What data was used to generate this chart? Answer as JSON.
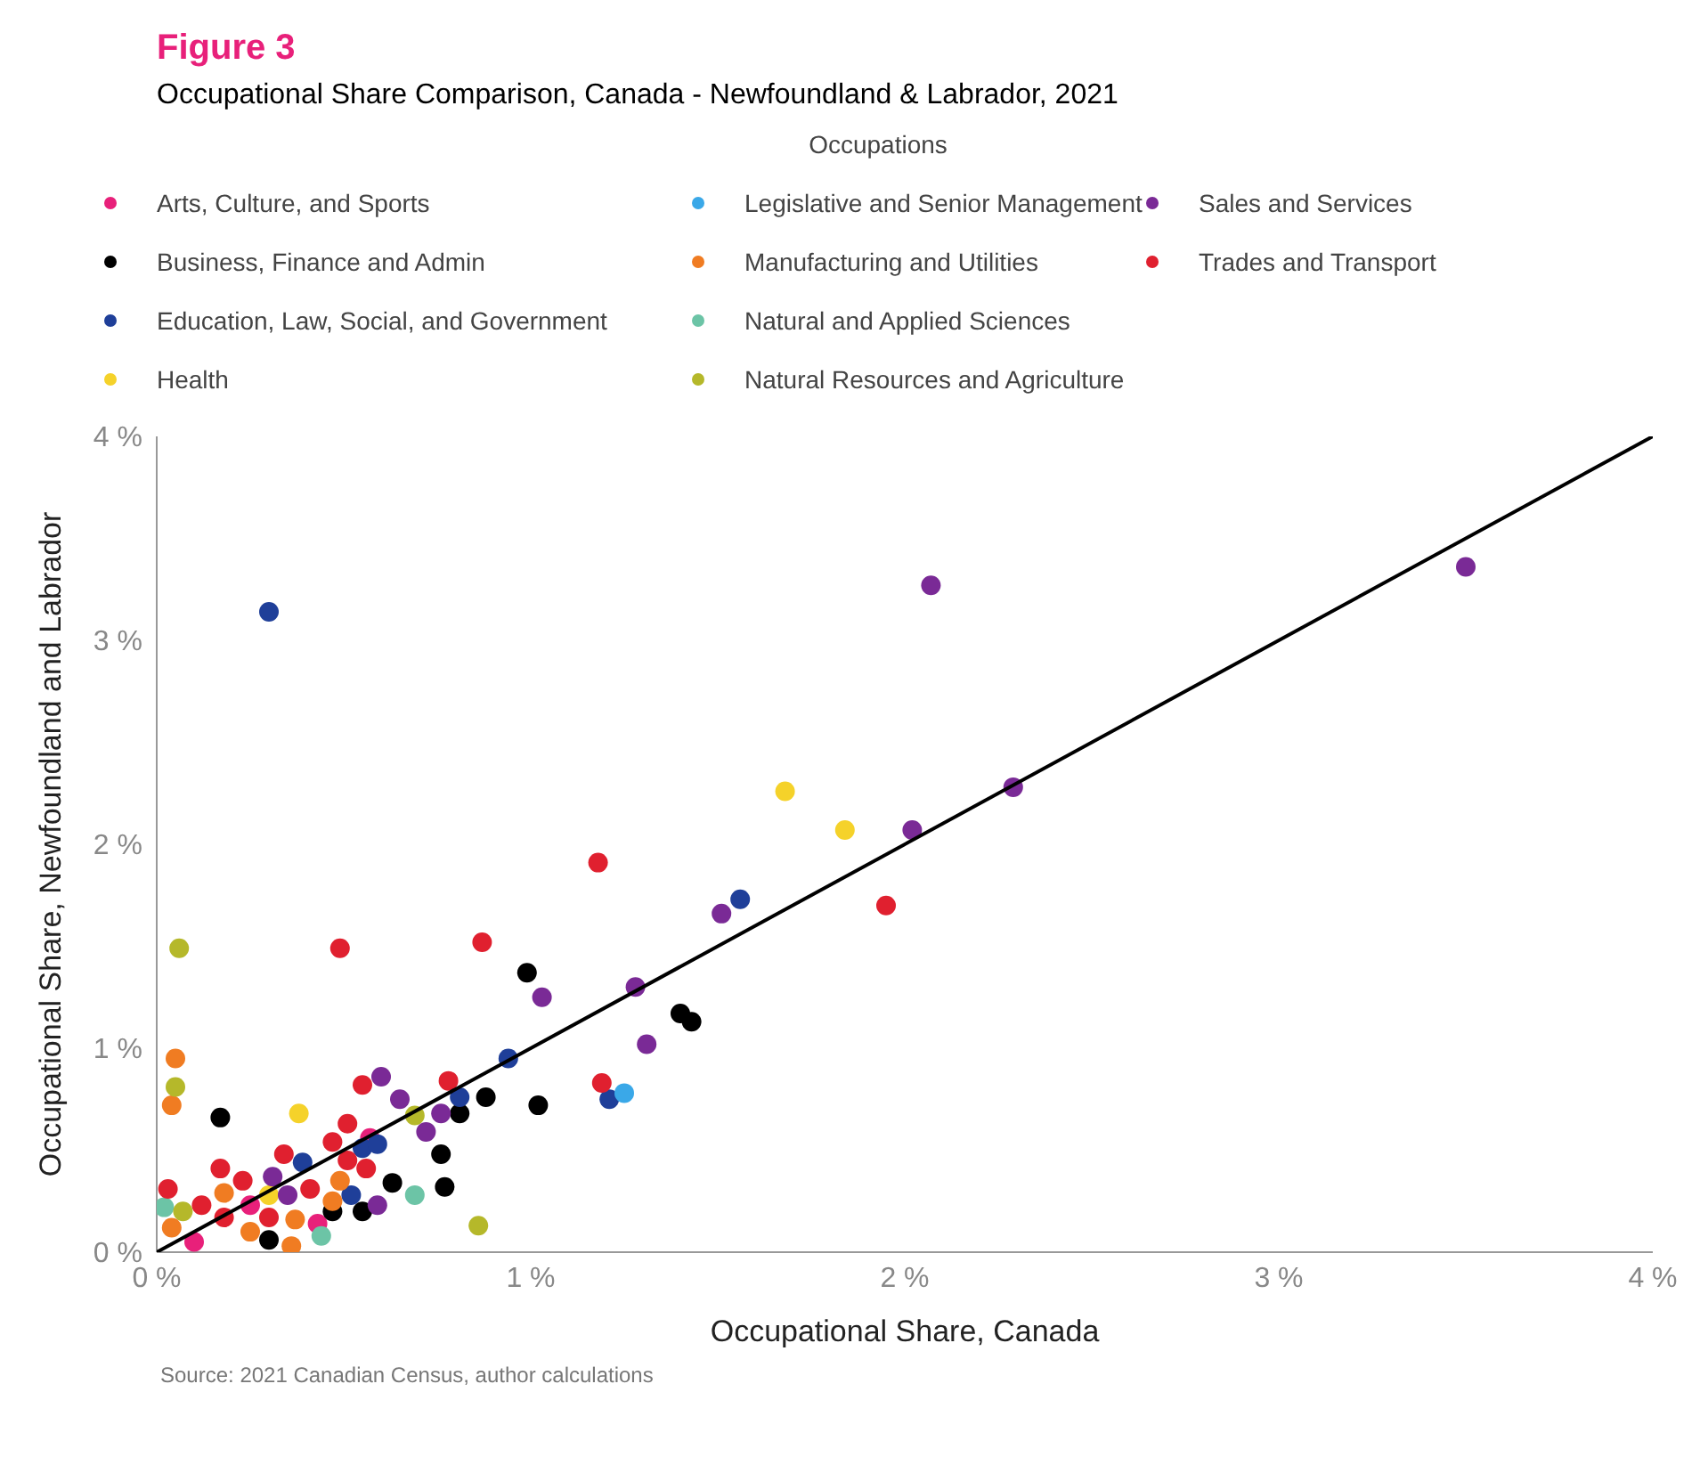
{
  "chart_data": {
    "type": "scatter",
    "title": "Figure 3",
    "subtitle": "Occupational Share Comparison, Canada - Newfoundland & Labrador, 2021",
    "xlabel": "Occupational Share, Canada",
    "ylabel": "Occupational Share, Newfoundland and Labrador",
    "legend_title": "Occupations",
    "legend": "top",
    "grid": false,
    "marker": "circle",
    "xlim": [
      0,
      4
    ],
    "ylim": [
      0,
      4
    ],
    "xticks": [
      {
        "value": 0,
        "label": "0 %"
      },
      {
        "value": 1,
        "label": "1 %"
      },
      {
        "value": 2,
        "label": "2 %"
      },
      {
        "value": 3,
        "label": "3 %"
      },
      {
        "value": 4,
        "label": "4 %"
      }
    ],
    "yticks": [
      {
        "value": 0,
        "label": "0 %"
      },
      {
        "value": 1,
        "label": "1 %"
      },
      {
        "value": 2,
        "label": "2 %"
      },
      {
        "value": 3,
        "label": "3 %"
      },
      {
        "value": 4,
        "label": "4 %"
      }
    ],
    "annotations": [
      "Source: 2021 Canadian Census, author calculations"
    ],
    "series": [
      {
        "name": "Arts, Culture, and Sports",
        "color": "#e8207a",
        "x": [
          0.57,
          0.43,
          0.25,
          0.1
        ],
        "values": [
          0.56,
          0.14,
          0.23,
          0.05
        ]
      },
      {
        "name": "Business, Finance and Admin",
        "color": "#000000",
        "x": [
          0.17,
          0.99,
          0.88,
          0.81,
          1.02,
          0.76,
          0.77,
          0.63,
          0.55,
          0.3,
          0.47,
          1.4,
          1.43
        ],
        "values": [
          0.66,
          1.37,
          0.76,
          0.68,
          0.72,
          0.48,
          0.32,
          0.34,
          0.2,
          0.06,
          0.2,
          1.17,
          1.13
        ]
      },
      {
        "name": "Education, Law, Social, and Government",
        "color": "#1f3f99",
        "x": [
          0.3,
          1.56,
          0.94,
          1.21,
          0.81,
          0.55,
          0.39,
          0.59,
          0.52
        ],
        "values": [
          3.14,
          1.73,
          0.95,
          0.75,
          0.76,
          0.51,
          0.44,
          0.53,
          0.28
        ]
      },
      {
        "name": "Health",
        "color": "#f5d22a",
        "x": [
          0.38,
          1.68,
          1.84,
          0.3
        ],
        "values": [
          0.68,
          2.26,
          2.07,
          0.28
        ]
      },
      {
        "name": "Legislative and Senior Management",
        "color": "#3aa8e8",
        "x": [
          1.25
        ],
        "values": [
          0.78
        ]
      },
      {
        "name": "Manufacturing and Utilities",
        "color": "#f07c22",
        "x": [
          0.05,
          0.04,
          0.18,
          0.49,
          0.47,
          0.25,
          0.36,
          0.37,
          0.04
        ],
        "values": [
          0.95,
          0.72,
          0.29,
          0.35,
          0.25,
          0.1,
          0.03,
          0.16,
          0.12
        ]
      },
      {
        "name": "Natural and Applied Sciences",
        "color": "#6cc4a6",
        "x": [
          0.69,
          0.44,
          0.02
        ],
        "values": [
          0.28,
          0.08,
          0.22
        ]
      },
      {
        "name": "Natural Resources and Agriculture",
        "color": "#b5b82a",
        "x": [
          0.06,
          0.05,
          0.86,
          0.69,
          0.07
        ],
        "values": [
          1.49,
          0.81,
          0.13,
          0.67,
          0.2
        ]
      },
      {
        "name": "Sales and Services",
        "color": "#7a2a96",
        "x": [
          3.5,
          2.07,
          2.29,
          2.02,
          1.51,
          1.28,
          1.03,
          1.31,
          0.6,
          0.65,
          0.76,
          0.72,
          0.59,
          0.31,
          0.35
        ],
        "values": [
          3.36,
          3.27,
          2.28,
          2.07,
          1.66,
          1.3,
          1.25,
          1.02,
          0.86,
          0.75,
          0.68,
          0.59,
          0.23,
          0.37,
          0.28
        ]
      },
      {
        "name": "Trades and Transport",
        "color": "#e0202f",
        "x": [
          0.49,
          0.87,
          1.18,
          1.95,
          1.19,
          0.78,
          0.55,
          0.51,
          0.47,
          0.56,
          0.34,
          0.17,
          0.03,
          0.23,
          0.51,
          0.12,
          0.3,
          0.18,
          0.41
        ],
        "values": [
          1.49,
          1.52,
          1.91,
          1.7,
          0.83,
          0.84,
          0.82,
          0.63,
          0.54,
          0.41,
          0.48,
          0.41,
          0.31,
          0.35,
          0.45,
          0.23,
          0.17,
          0.17,
          0.31
        ]
      },
      {
        "type": "line",
        "color": "#000000",
        "marker": "none",
        "x": [
          0,
          4
        ],
        "values": [
          0,
          4
        ]
      }
    ]
  }
}
